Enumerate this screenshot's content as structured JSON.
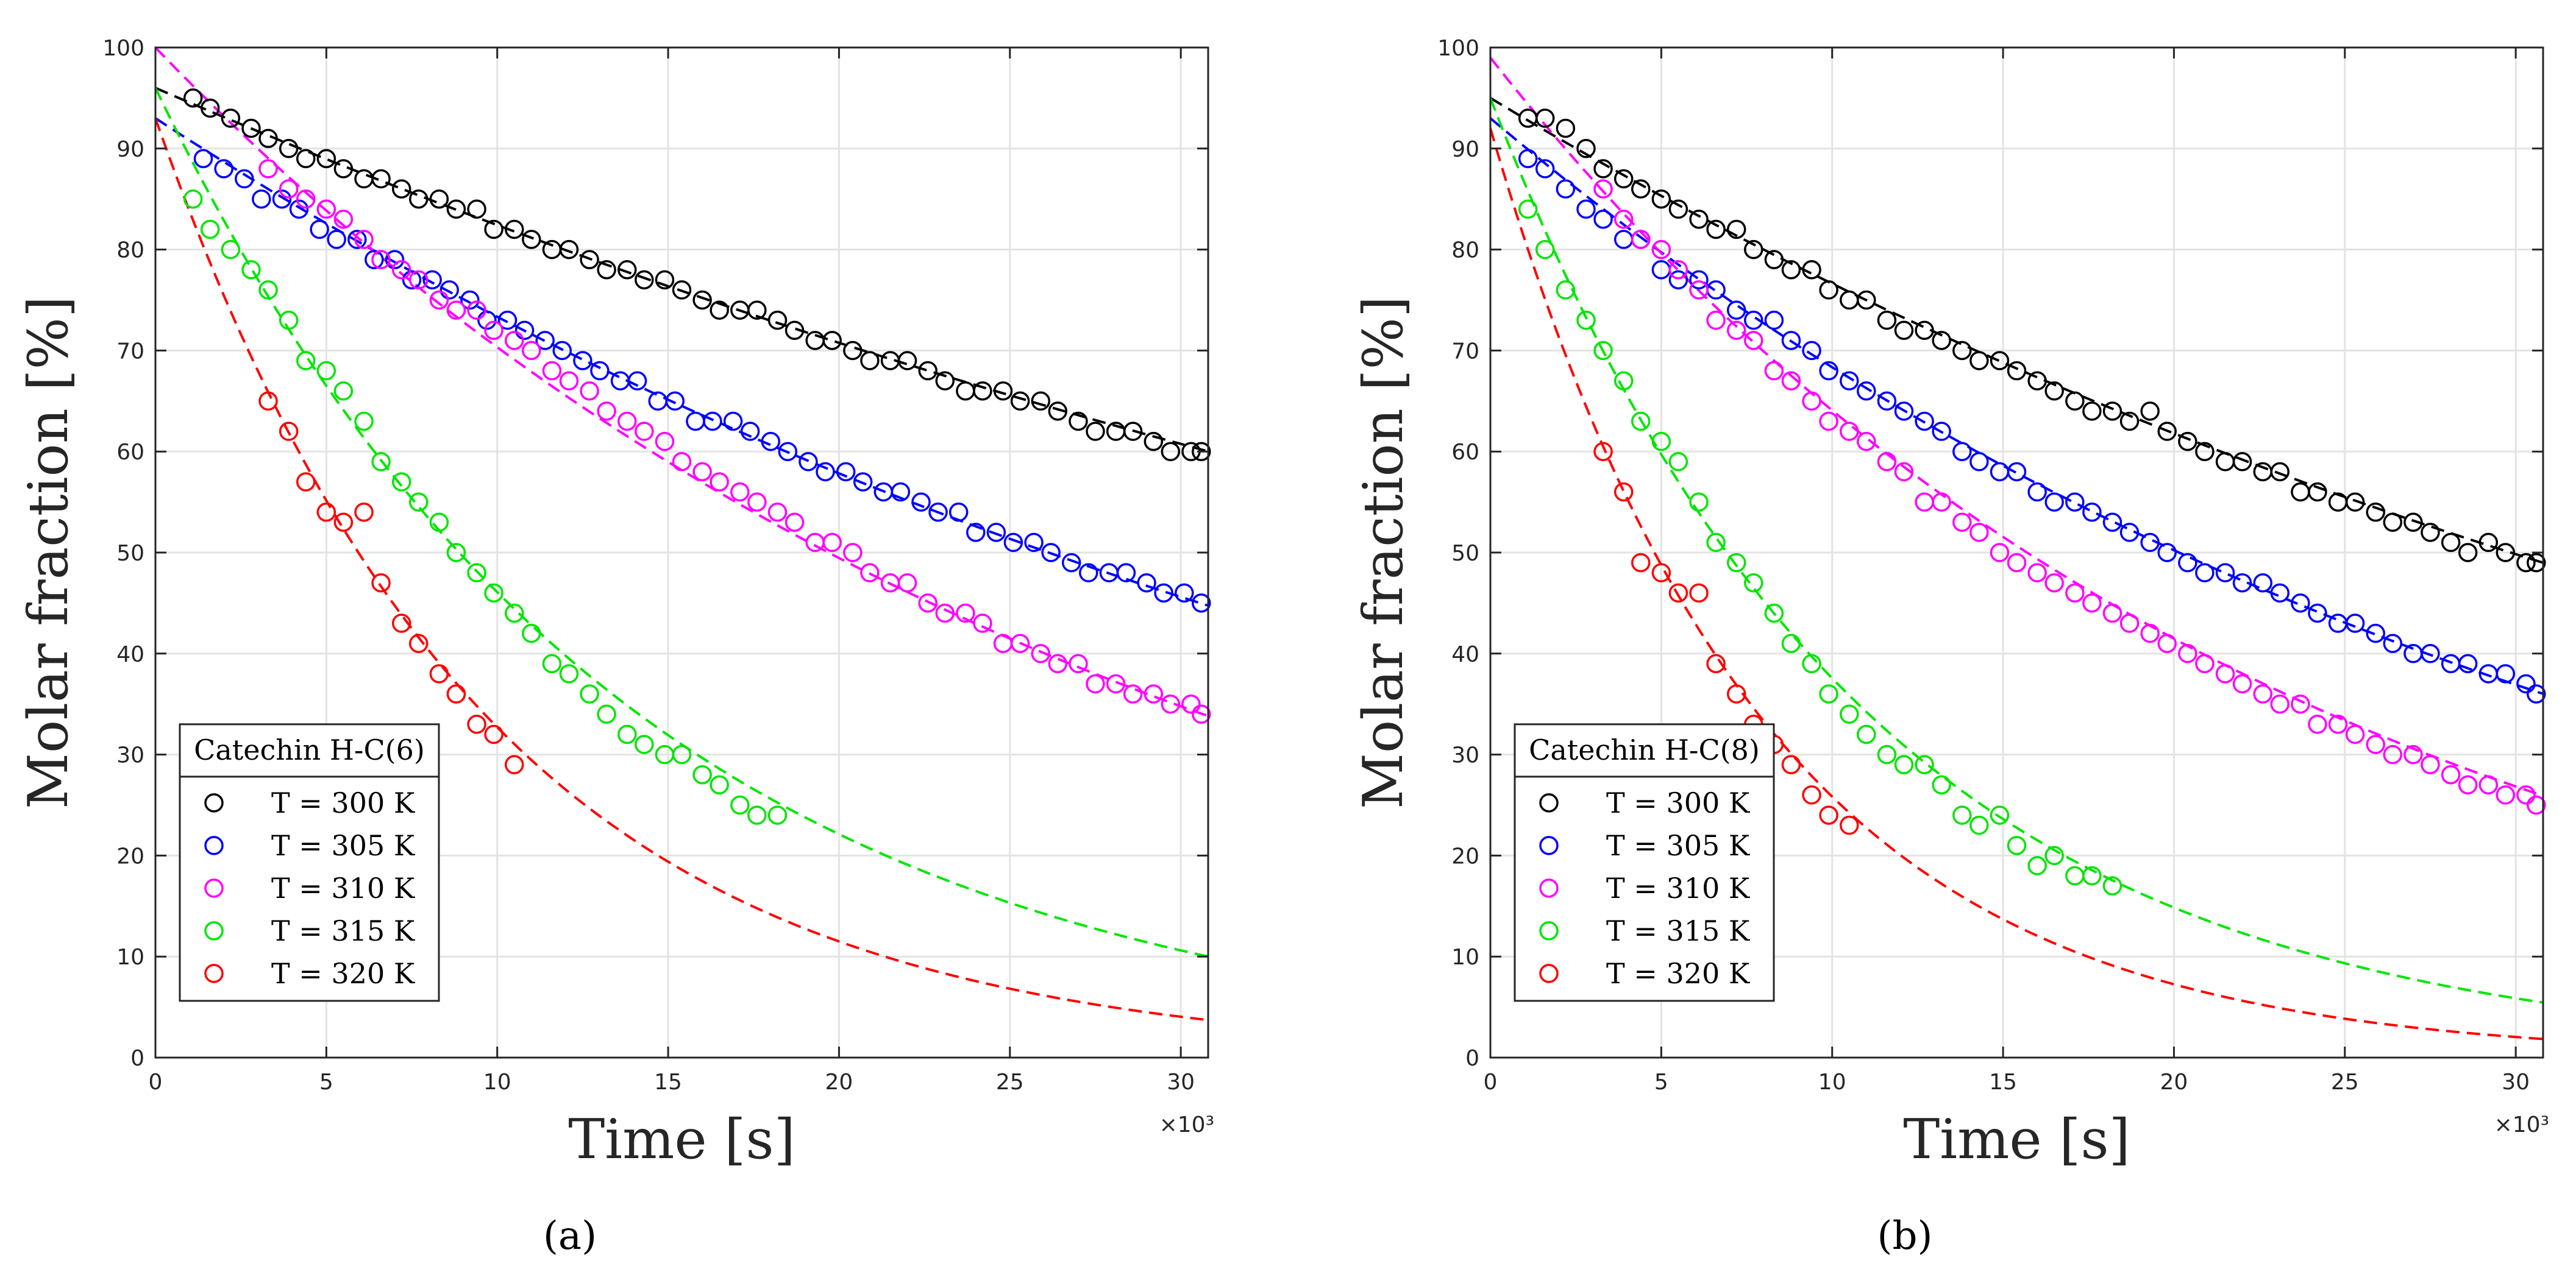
{
  "chart_data": [
    {
      "type": "scatter",
      "panel_label": "(a)",
      "xlabel": "Time [s]",
      "ylabel": "Molar fraction [%]",
      "x_exponent_label": "×10³",
      "xlim": [
        0,
        30.8
      ],
      "ylim": [
        0,
        100
      ],
      "x_ticks": [
        0,
        5,
        10,
        15,
        20,
        25,
        30
      ],
      "y_ticks": [
        0,
        10,
        20,
        30,
        40,
        50,
        60,
        70,
        80,
        90,
        100
      ],
      "grid": true,
      "legend_title": "Catechin H-C(6)",
      "legend_position": "bottom-left",
      "x_units_note": "x values in thousands of seconds",
      "series": [
        {
          "name": "T = 300 K",
          "color": "#000000",
          "fit": {
            "y0": 96.0,
            "k": 0.01525
          },
          "x": [
            1.1,
            1.6,
            2.2,
            2.8,
            3.3,
            3.9,
            4.4,
            5.0,
            5.5,
            6.1,
            6.6,
            7.2,
            7.7,
            8.3,
            8.8,
            9.4,
            9.9,
            10.5,
            11.0,
            11.6,
            12.1,
            12.7,
            13.2,
            13.8,
            14.3,
            14.9,
            15.4,
            16.0,
            16.5,
            17.1,
            17.6,
            18.2,
            18.7,
            19.3,
            19.8,
            20.4,
            20.9,
            21.5,
            22.0,
            22.6,
            23.1,
            23.7,
            24.2,
            24.8,
            25.3,
            25.9,
            26.4,
            27.0,
            27.5,
            28.1,
            28.6,
            29.2,
            29.7,
            30.3,
            30.6
          ],
          "y": [
            95,
            94,
            93,
            92,
            91,
            90,
            89,
            89,
            88,
            87,
            87,
            86,
            85,
            85,
            84,
            84,
            82,
            82,
            81,
            80,
            80,
            79,
            78,
            78,
            77,
            77,
            76,
            75,
            74,
            74,
            74,
            73,
            72,
            71,
            71,
            70,
            69,
            69,
            69,
            68,
            67,
            66,
            66,
            66,
            65,
            65,
            64,
            63,
            62,
            62,
            62,
            61,
            60,
            60,
            60
          ]
        },
        {
          "name": "T = 305 K",
          "color": "#0000ff",
          "fit": {
            "y0": 93.0,
            "k": 0.02375
          },
          "x": [
            1.4,
            2.0,
            2.6,
            3.1,
            3.7,
            4.2,
            4.8,
            5.3,
            5.9,
            6.4,
            7.0,
            7.5,
            8.1,
            8.6,
            9.2,
            9.7,
            10.3,
            10.8,
            11.4,
            11.9,
            12.5,
            13.0,
            13.6,
            14.1,
            14.7,
            15.2,
            15.8,
            16.3,
            16.9,
            17.4,
            18.0,
            18.5,
            19.1,
            19.6,
            20.2,
            20.7,
            21.3,
            21.8,
            22.4,
            22.9,
            23.5,
            24.0,
            24.6,
            25.1,
            25.7,
            26.2,
            26.8,
            27.3,
            27.9,
            28.4,
            29.0,
            29.5,
            30.1,
            30.6
          ],
          "y": [
            89,
            88,
            87,
            85,
            85,
            84,
            82,
            81,
            81,
            79,
            79,
            77,
            77,
            76,
            75,
            73,
            73,
            72,
            71,
            70,
            69,
            68,
            67,
            67,
            65,
            65,
            63,
            63,
            63,
            62,
            61,
            60,
            59,
            58,
            58,
            57,
            56,
            56,
            55,
            54,
            54,
            52,
            52,
            51,
            51,
            50,
            49,
            48,
            48,
            48,
            47,
            46,
            46,
            45
          ]
        },
        {
          "name": "T = 310 K",
          "color": "#ff00ff",
          "fit": {
            "y0": 100.0,
            "k": 0.0352
          },
          "x": [
            3.3,
            3.9,
            4.4,
            5.0,
            5.5,
            6.1,
            6.6,
            7.2,
            7.7,
            8.3,
            8.8,
            9.4,
            9.9,
            10.5,
            11.0,
            11.6,
            12.1,
            12.7,
            13.2,
            13.8,
            14.3,
            14.9,
            15.4,
            16.0,
            16.5,
            17.1,
            17.6,
            18.2,
            18.7,
            19.3,
            19.8,
            20.4,
            20.9,
            21.5,
            22.0,
            22.6,
            23.1,
            23.7,
            24.2,
            24.8,
            25.3,
            25.9,
            26.4,
            27.0,
            27.5,
            28.1,
            28.6,
            29.2,
            29.7,
            30.3,
            30.6
          ],
          "y": [
            88,
            86,
            85,
            84,
            83,
            81,
            79,
            78,
            77,
            75,
            74,
            74,
            72,
            71,
            70,
            68,
            67,
            66,
            64,
            63,
            62,
            61,
            59,
            58,
            57,
            56,
            55,
            54,
            53,
            51,
            51,
            50,
            48,
            47,
            47,
            45,
            44,
            44,
            43,
            41,
            41,
            40,
            39,
            39,
            37,
            37,
            36,
            36,
            35,
            35,
            34
          ]
        },
        {
          "name": "T = 315 K",
          "color": "#00e600",
          "fit": {
            "y0": 96.0,
            "k": 0.0734
          },
          "x": [
            1.1,
            1.6,
            2.2,
            2.8,
            3.3,
            3.9,
            4.4,
            5.0,
            5.5,
            6.1,
            6.6,
            7.2,
            7.7,
            8.3,
            8.8,
            9.4,
            9.9,
            10.5,
            11.0,
            11.6,
            12.1,
            12.7,
            13.2,
            13.8,
            14.3,
            14.9,
            15.4,
            16.0,
            16.5,
            17.1,
            17.6,
            18.2
          ],
          "y": [
            85,
            82,
            80,
            78,
            76,
            73,
            69,
            68,
            66,
            63,
            59,
            57,
            55,
            53,
            50,
            48,
            46,
            44,
            42,
            39,
            38,
            36,
            34,
            32,
            31,
            30,
            30,
            28,
            27,
            25,
            24,
            24
          ]
        },
        {
          "name": "T = 320 K",
          "color": "#ff0000",
          "fit": {
            "y0": 93.0,
            "k": 0.1045
          },
          "x": [
            3.3,
            3.9,
            4.4,
            5.0,
            5.5,
            6.1,
            6.6,
            7.2,
            7.7,
            8.3,
            8.8,
            9.4,
            9.9,
            10.5
          ],
          "y": [
            65,
            62,
            57,
            54,
            53,
            54,
            47,
            43,
            41,
            38,
            36,
            33,
            32,
            29
          ]
        }
      ]
    },
    {
      "type": "scatter",
      "panel_label": "(b)",
      "xlabel": "Time [s]",
      "ylabel": "Molar fraction [%]",
      "x_exponent_label": "×10³",
      "xlim": [
        0,
        30.8
      ],
      "ylim": [
        0,
        100
      ],
      "x_ticks": [
        0,
        5,
        10,
        15,
        20,
        25,
        30
      ],
      "y_ticks": [
        0,
        10,
        20,
        30,
        40,
        50,
        60,
        70,
        80,
        90,
        100
      ],
      "grid": true,
      "legend_title": "Catechin H-C(8)",
      "legend_position": "bottom-left",
      "x_units_note": "x values in thousands of seconds",
      "series": [
        {
          "name": "T = 300 K",
          "color": "#000000",
          "fit": {
            "y0": 95.0,
            "k": 0.0215
          },
          "x": [
            1.1,
            1.6,
            2.2,
            2.8,
            3.3,
            3.9,
            4.4,
            5.0,
            5.5,
            6.1,
            6.6,
            7.2,
            7.7,
            8.3,
            8.8,
            9.4,
            9.9,
            10.5,
            11.0,
            11.6,
            12.1,
            12.7,
            13.2,
            13.8,
            14.3,
            14.9,
            15.4,
            16.0,
            16.5,
            17.1,
            17.6,
            18.2,
            18.7,
            19.3,
            19.8,
            20.4,
            20.9,
            21.5,
            22.0,
            22.6,
            23.1,
            23.7,
            24.2,
            24.8,
            25.3,
            25.9,
            26.4,
            27.0,
            27.5,
            28.1,
            28.6,
            29.2,
            29.7,
            30.3,
            30.6
          ],
          "y": [
            93,
            93,
            92,
            90,
            88,
            87,
            86,
            85,
            84,
            83,
            82,
            82,
            80,
            79,
            78,
            78,
            76,
            75,
            75,
            73,
            72,
            72,
            71,
            70,
            69,
            69,
            68,
            67,
            66,
            65,
            64,
            64,
            63,
            64,
            62,
            61,
            60,
            59,
            59,
            58,
            58,
            56,
            56,
            55,
            55,
            54,
            53,
            53,
            52,
            51,
            50,
            51,
            50,
            49,
            49
          ]
        },
        {
          "name": "T = 305 K",
          "color": "#0000ff",
          "fit": {
            "y0": 93.0,
            "k": 0.0308
          },
          "x": [
            1.1,
            1.6,
            2.2,
            2.8,
            3.3,
            3.9,
            4.4,
            5.0,
            5.5,
            6.1,
            6.6,
            7.2,
            7.7,
            8.3,
            8.8,
            9.4,
            9.9,
            10.5,
            11.0,
            11.6,
            12.1,
            12.7,
            13.2,
            13.8,
            14.3,
            14.9,
            15.4,
            16.0,
            16.5,
            17.1,
            17.6,
            18.2,
            18.7,
            19.3,
            19.8,
            20.4,
            20.9,
            21.5,
            22.0,
            22.6,
            23.1,
            23.7,
            24.2,
            24.8,
            25.3,
            25.9,
            26.4,
            27.0,
            27.5,
            28.1,
            28.6,
            29.2,
            29.7,
            30.3,
            30.6
          ],
          "y": [
            89,
            88,
            86,
            84,
            83,
            81,
            81,
            78,
            77,
            77,
            76,
            74,
            73,
            73,
            71,
            70,
            68,
            67,
            66,
            65,
            64,
            63,
            62,
            60,
            59,
            58,
            58,
            56,
            55,
            55,
            54,
            53,
            52,
            51,
            50,
            49,
            48,
            48,
            47,
            47,
            46,
            45,
            44,
            43,
            43,
            42,
            41,
            40,
            40,
            39,
            39,
            38,
            38,
            37,
            36
          ]
        },
        {
          "name": "T = 310 K",
          "color": "#ff00ff",
          "fit": {
            "y0": 99.0,
            "k": 0.0435
          },
          "x": [
            3.3,
            3.9,
            4.4,
            5.0,
            5.5,
            6.1,
            6.6,
            7.2,
            7.7,
            8.3,
            8.8,
            9.4,
            9.9,
            10.5,
            11.0,
            11.6,
            12.1,
            12.7,
            13.2,
            13.8,
            14.3,
            14.9,
            15.4,
            16.0,
            16.5,
            17.1,
            17.6,
            18.2,
            18.7,
            19.3,
            19.8,
            20.4,
            20.9,
            21.5,
            22.0,
            22.6,
            23.1,
            23.7,
            24.2,
            24.8,
            25.3,
            25.9,
            26.4,
            27.0,
            27.5,
            28.1,
            28.6,
            29.2,
            29.7,
            30.3,
            30.6
          ],
          "y": [
            86,
            83,
            81,
            80,
            78,
            76,
            73,
            72,
            71,
            68,
            67,
            65,
            63,
            62,
            61,
            59,
            58,
            55,
            55,
            53,
            52,
            50,
            49,
            48,
            47,
            46,
            45,
            44,
            43,
            42,
            41,
            40,
            39,
            38,
            37,
            36,
            35,
            35,
            33,
            33,
            32,
            31,
            30,
            30,
            29,
            28,
            27,
            27,
            26,
            26,
            25
          ]
        },
        {
          "name": "T = 315 K",
          "color": "#00e600",
          "fit": {
            "y0": 95.0,
            "k": 0.0928
          },
          "x": [
            1.1,
            1.6,
            2.2,
            2.8,
            3.3,
            3.9,
            4.4,
            5.0,
            5.5,
            6.1,
            6.6,
            7.2,
            7.7,
            8.3,
            8.8,
            9.4,
            9.9,
            10.5,
            11.0,
            11.6,
            12.1,
            12.7,
            13.2,
            13.8,
            14.3,
            14.9,
            15.4,
            16.0,
            16.5,
            17.1,
            17.6,
            18.2
          ],
          "y": [
            84,
            80,
            76,
            73,
            70,
            67,
            63,
            61,
            59,
            55,
            51,
            49,
            47,
            44,
            41,
            39,
            36,
            34,
            32,
            30,
            29,
            29,
            27,
            24,
            23,
            24,
            21,
            19,
            20,
            18,
            18,
            17
          ]
        },
        {
          "name": "T = 320 K",
          "color": "#ff0000",
          "fit": {
            "y0": 92.0,
            "k": 0.127
          },
          "x": [
            3.3,
            3.9,
            4.4,
            5.0,
            5.5,
            6.1,
            6.6,
            7.2,
            7.7,
            8.3,
            8.8,
            9.4,
            9.9,
            10.5
          ],
          "y": [
            60,
            56,
            49,
            48,
            46,
            46,
            39,
            36,
            33,
            31,
            29,
            26,
            24,
            23
          ]
        }
      ]
    }
  ]
}
